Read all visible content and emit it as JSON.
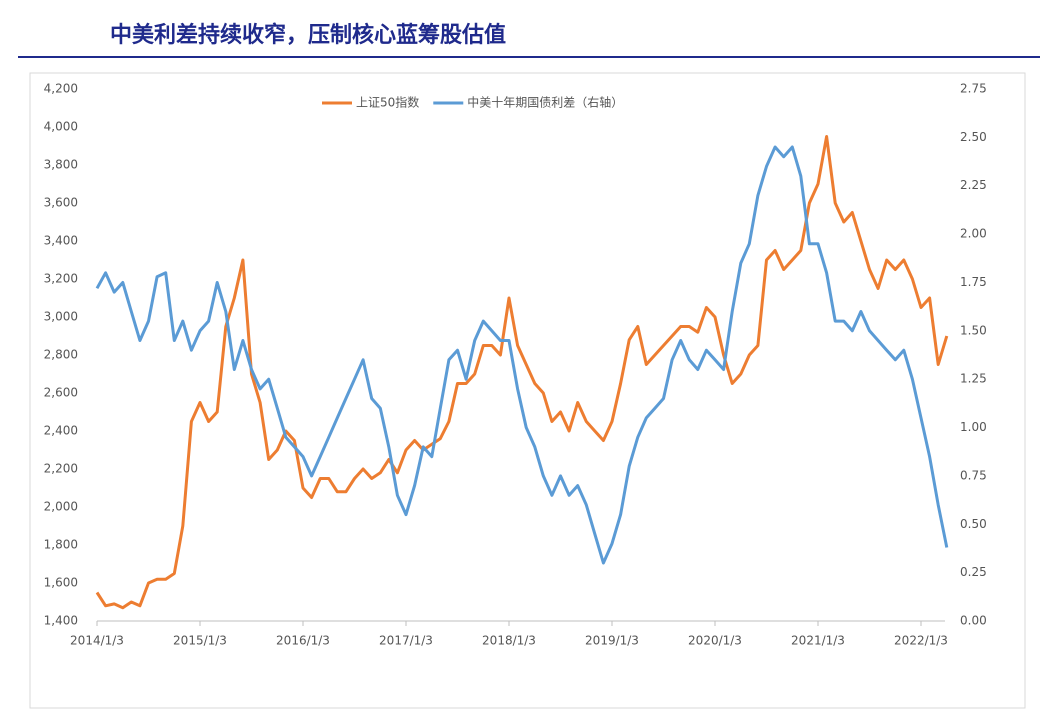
{
  "chart_data": {
    "type": "line",
    "title": "中美利差持续收窄，压制核心蓝筹股估值",
    "x": [
      "2014/1/3",
      "2014/2/3",
      "2014/3/3",
      "2014/4/3",
      "2014/5/3",
      "2014/6/3",
      "2014/7/3",
      "2014/8/3",
      "2014/9/3",
      "2014/10/3",
      "2014/11/3",
      "2014/12/3",
      "2015/1/3",
      "2015/2/3",
      "2015/3/3",
      "2015/4/3",
      "2015/5/3",
      "2015/6/3",
      "2015/7/3",
      "2015/8/3",
      "2015/9/3",
      "2015/10/3",
      "2015/11/3",
      "2015/12/3",
      "2016/1/3",
      "2016/2/3",
      "2016/3/3",
      "2016/4/3",
      "2016/5/3",
      "2016/6/3",
      "2016/7/3",
      "2016/8/3",
      "2016/9/3",
      "2016/10/3",
      "2016/11/3",
      "2016/12/3",
      "2017/1/3",
      "2017/2/3",
      "2017/3/3",
      "2017/4/3",
      "2017/5/3",
      "2017/6/3",
      "2017/7/3",
      "2017/8/3",
      "2017/9/3",
      "2017/10/3",
      "2017/11/3",
      "2017/12/3",
      "2018/1/3",
      "2018/2/3",
      "2018/3/3",
      "2018/4/3",
      "2018/5/3",
      "2018/6/3",
      "2018/7/3",
      "2018/8/3",
      "2018/9/3",
      "2018/10/3",
      "2018/11/3",
      "2018/12/3",
      "2019/1/3",
      "2019/2/3",
      "2019/3/3",
      "2019/4/3",
      "2019/5/3",
      "2019/6/3",
      "2019/7/3",
      "2019/8/3",
      "2019/9/3",
      "2019/10/3",
      "2019/11/3",
      "2019/12/3",
      "2020/1/3",
      "2020/2/3",
      "2020/3/3",
      "2020/4/3",
      "2020/5/3",
      "2020/6/3",
      "2020/7/3",
      "2020/8/3",
      "2020/9/3",
      "2020/10/3",
      "2020/11/3",
      "2020/12/3",
      "2021/1/3",
      "2021/2/3",
      "2021/3/3",
      "2021/4/3",
      "2021/5/3",
      "2021/6/3",
      "2021/7/3",
      "2021/8/3",
      "2021/9/3",
      "2021/10/3",
      "2021/11/3",
      "2021/12/3",
      "2022/1/3",
      "2022/2/3",
      "2022/3/3",
      "2022/4/3"
    ],
    "series": [
      {
        "name": "上证50指数",
        "color": "#ed7d31",
        "values": [
          1550,
          1480,
          1490,
          1470,
          1500,
          1480,
          1600,
          1620,
          1620,
          1650,
          1900,
          2450,
          2550,
          2450,
          2500,
          2950,
          3100,
          3300,
          2700,
          2550,
          2250,
          2300,
          2400,
          2350,
          2100,
          2050,
          2150,
          2150,
          2080,
          2080,
          2150,
          2200,
          2150,
          2180,
          2250,
          2180,
          2300,
          2350,
          2300,
          2330,
          2360,
          2450,
          2650,
          2650,
          2700,
          2850,
          2850,
          2800,
          3100,
          2850,
          2750,
          2650,
          2600,
          2450,
          2500,
          2400,
          2550,
          2450,
          2400,
          2350,
          2450,
          2650,
          2880,
          2950,
          2750,
          2800,
          2850,
          2900,
          2950,
          2950,
          2920,
          3050,
          3000,
          2800,
          2650,
          2700,
          2800,
          2850,
          3300,
          3350,
          3250,
          3300,
          3350,
          3600,
          3700,
          3950,
          3600,
          3500,
          3550,
          3400,
          3250,
          3150,
          3300,
          3250,
          3300,
          3200,
          3050,
          3100,
          2750,
          2900
        ]
      },
      {
        "name": "中美十年期国债利差（右轴）",
        "color": "#5b9bd5",
        "axis": "y2",
        "values": [
          1.72,
          1.8,
          1.7,
          1.75,
          1.6,
          1.45,
          1.55,
          1.78,
          1.8,
          1.45,
          1.55,
          1.4,
          1.5,
          1.55,
          1.75,
          1.6,
          1.3,
          1.45,
          1.3,
          1.2,
          1.25,
          1.1,
          0.95,
          0.9,
          0.85,
          0.75,
          0.85,
          0.95,
          1.05,
          1.15,
          1.25,
          1.35,
          1.15,
          1.1,
          0.9,
          0.65,
          0.55,
          0.7,
          0.9,
          0.85,
          1.1,
          1.35,
          1.4,
          1.25,
          1.45,
          1.55,
          1.5,
          1.45,
          1.45,
          1.2,
          1.0,
          0.9,
          0.75,
          0.65,
          0.75,
          0.65,
          0.7,
          0.6,
          0.45,
          0.3,
          0.4,
          0.55,
          0.8,
          0.95,
          1.05,
          1.1,
          1.15,
          1.35,
          1.45,
          1.35,
          1.3,
          1.4,
          1.35,
          1.3,
          1.6,
          1.85,
          1.95,
          2.2,
          2.35,
          2.45,
          2.4,
          2.45,
          2.3,
          1.95,
          1.95,
          1.8,
          1.55,
          1.55,
          1.5,
          1.6,
          1.5,
          1.45,
          1.4,
          1.35,
          1.4,
          1.25,
          1.05,
          0.85,
          0.6,
          0.38
        ]
      }
    ],
    "xticks": [
      "2014/1/3",
      "2015/1/3",
      "2016/1/3",
      "2017/1/3",
      "2018/1/3",
      "2019/1/3",
      "2020/1/3",
      "2021/1/3",
      "2022/1/3"
    ],
    "ylim": [
      1400,
      4200
    ],
    "yticks": [
      {
        "value": 1400,
        "label": "1,400"
      },
      {
        "value": 1600,
        "label": "1,600"
      },
      {
        "value": 1800,
        "label": "1,800"
      },
      {
        "value": 2000,
        "label": "2,000"
      },
      {
        "value": 2200,
        "label": "2,200"
      },
      {
        "value": 2400,
        "label": "2,400"
      },
      {
        "value": 2600,
        "label": "2,600"
      },
      {
        "value": 2800,
        "label": "2,800"
      },
      {
        "value": 3000,
        "label": "3,000"
      },
      {
        "value": 3200,
        "label": "3,200"
      },
      {
        "value": 3400,
        "label": "3,400"
      },
      {
        "value": 3600,
        "label": "3,600"
      },
      {
        "value": 3800,
        "label": "3,800"
      },
      {
        "value": 4000,
        "label": "4,000"
      },
      {
        "value": 4200,
        "label": "4,200"
      }
    ],
    "y2lim": [
      0,
      2.75
    ],
    "y2ticks": [
      {
        "value": 0,
        "label": "0.00"
      },
      0.25,
      {
        "value": 0.5,
        "label": "0.50"
      },
      0.75,
      {
        "value": 1,
        "label": "1.00"
      },
      1.25,
      {
        "value": 1.5,
        "label": "1.50"
      },
      1.75,
      {
        "value": 2,
        "label": "2.00"
      },
      2.25,
      {
        "value": 2.5,
        "label": "2.50"
      },
      2.75
    ],
    "legend": "top"
  }
}
